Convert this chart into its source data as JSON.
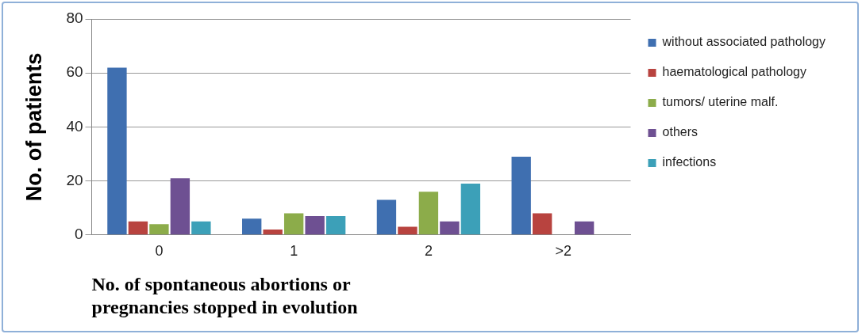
{
  "chart_data": {
    "type": "bar",
    "xlabel": "No. of spontaneous abortions or\npregnancies stopped in evolution",
    "ylabel": "No. of patients",
    "categories": [
      "0",
      "1",
      "2",
      ">2"
    ],
    "ylim": [
      0,
      80
    ],
    "yticks": [
      0,
      20,
      40,
      60,
      80
    ],
    "grid": "y",
    "legend": "right",
    "series": [
      {
        "name": "without associated pathology",
        "color": "#3f6fb0",
        "values": [
          62,
          6,
          13,
          29
        ]
      },
      {
        "name": "haematological pathology",
        "color": "#b8433f",
        "values": [
          5,
          2,
          3,
          8
        ]
      },
      {
        "name": "tumors/ uterine malf.",
        "color": "#8cac4a",
        "values": [
          4,
          8,
          16,
          0
        ]
      },
      {
        "name": "others",
        "color": "#6e5092",
        "values": [
          21,
          7,
          5,
          5
        ]
      },
      {
        "name": "infections",
        "color": "#3ca0b8",
        "values": [
          5,
          7,
          19,
          0
        ]
      }
    ]
  }
}
